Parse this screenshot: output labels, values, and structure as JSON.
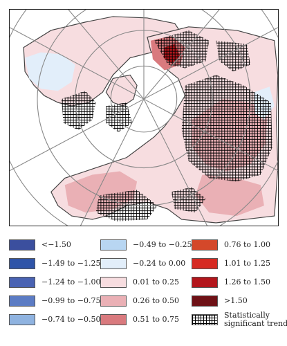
{
  "legend": {
    "items": [
      {
        "label": "<−1.50",
        "color": "#3b4f9e"
      },
      {
        "label": "−1.49 to −1.25",
        "color": "#2f54a8"
      },
      {
        "label": "−1.24 to −1.00",
        "color": "#4a63b3"
      },
      {
        "label": "−0.99 to −0.75",
        "color": "#5c7cc4"
      },
      {
        "label": "−0.74 to −0.50",
        "color": "#8fb3e0"
      },
      {
        "label": "−0.49 to −0.25",
        "color": "#b8d6f2"
      },
      {
        "label": "−0.24 to 0.00",
        "color": "#e2eefa"
      },
      {
        "label": "0.01 to 0.25",
        "color": "#f7dde0"
      },
      {
        "label": "0.26 to 0.50",
        "color": "#eab0b5"
      },
      {
        "label": "0.51 to 0.75",
        "color": "#d97a7e"
      },
      {
        "label": "0.76 to 1.00",
        "color": "#d4482a"
      },
      {
        "label": "1.01 to 1.25",
        "color": "#d62a22"
      },
      {
        "label": "1.26 to 1.50",
        "color": "#b3161c"
      },
      {
        "label": ">1.50",
        "color": "#6e1116"
      },
      {
        "label": "Statistically significant trend",
        "color": "hatch"
      }
    ]
  }
}
